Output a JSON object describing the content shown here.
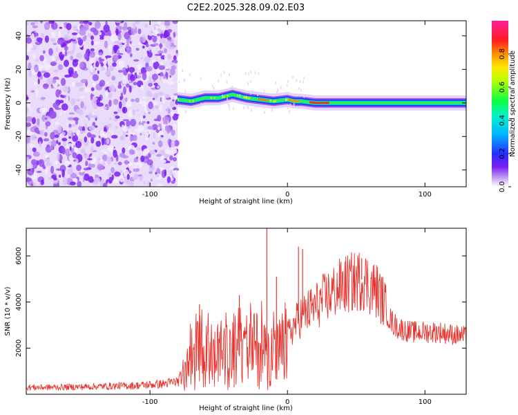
{
  "title": "C2E2.2025.328.09.02.E03",
  "chart_data": [
    {
      "type": "heatmap",
      "xlabel": "Height of straight line (km)",
      "ylabel": "Frequency (Hz)",
      "xlim": [
        -190,
        130
      ],
      "ylim": [
        -50,
        49
      ],
      "xticks": [
        -100,
        0,
        100
      ],
      "xtick_labels": [
        "-100",
        "0",
        "100"
      ],
      "yticks": [
        -40,
        -20,
        0,
        20,
        40
      ],
      "ytick_labels": [
        "-40",
        "-20",
        "0",
        "20",
        "40"
      ],
      "noise_region_x": [
        -190,
        -80
      ],
      "signal_ridge": {
        "x": [
          -80,
          -70,
          -60,
          -50,
          -40,
          -30,
          -20,
          -10,
          0,
          5,
          10,
          20,
          40,
          60,
          80,
          100,
          130
        ],
        "freq": [
          2,
          1,
          3,
          3,
          5,
          3,
          2,
          1,
          2,
          1,
          1,
          0,
          0,
          0,
          0,
          0,
          0
        ]
      },
      "colorbar": {
        "label": "Normalized spectral amplitude",
        "range": [
          0,
          1
        ],
        "ticks": [
          0.0,
          0.2,
          0.4,
          0.6,
          0.8
        ],
        "tick_labels": [
          "0.0",
          "0.2",
          "0.4",
          "0.6",
          "0.8"
        ]
      }
    },
    {
      "type": "line",
      "xlabel": "Height of straight line (km)",
      "ylabel": "SNR (10 * v/v)",
      "xlim": [
        -190,
        130
      ],
      "ylim": [
        0,
        7200
      ],
      "xticks": [
        -100,
        0,
        100
      ],
      "xtick_labels": [
        "-100",
        "0",
        "100"
      ],
      "yticks": [
        2000,
        4000,
        6000
      ],
      "ytick_labels": [
        "2000",
        "4000",
        "6000"
      ],
      "series": [
        {
          "name": "SNR",
          "color": "#e8352f",
          "x": [
            -190,
            -170,
            -150,
            -130,
            -110,
            -90,
            -80,
            -75,
            -70,
            -65,
            -60,
            -50,
            -40,
            -30,
            -25,
            -20,
            -15,
            -10,
            -5,
            0,
            5,
            10,
            15,
            20,
            30,
            40,
            50,
            55,
            60,
            65,
            70,
            75,
            80,
            90,
            100,
            110,
            120,
            130
          ],
          "values": [
            300,
            300,
            320,
            350,
            380,
            450,
            550,
            900,
            1400,
            1700,
            1600,
            1500,
            1700,
            1600,
            2000,
            1900,
            1700,
            1600,
            1800,
            2500,
            3000,
            3400,
            3600,
            3800,
            4300,
            4700,
            4900,
            5000,
            4700,
            4500,
            4000,
            3200,
            2900,
            2700,
            2700,
            2700,
            2600,
            2500
          ],
          "spikes": [
            {
              "x": -64,
              "value": 3900
            },
            {
              "x": -35,
              "value": 4300
            },
            {
              "x": -15,
              "value": 7200
            },
            {
              "x": -8,
              "value": 5100
            },
            {
              "x": 8,
              "value": 6400
            },
            {
              "x": 11,
              "value": 6300
            },
            {
              "x": 54,
              "value": 5900
            }
          ]
        }
      ]
    }
  ]
}
